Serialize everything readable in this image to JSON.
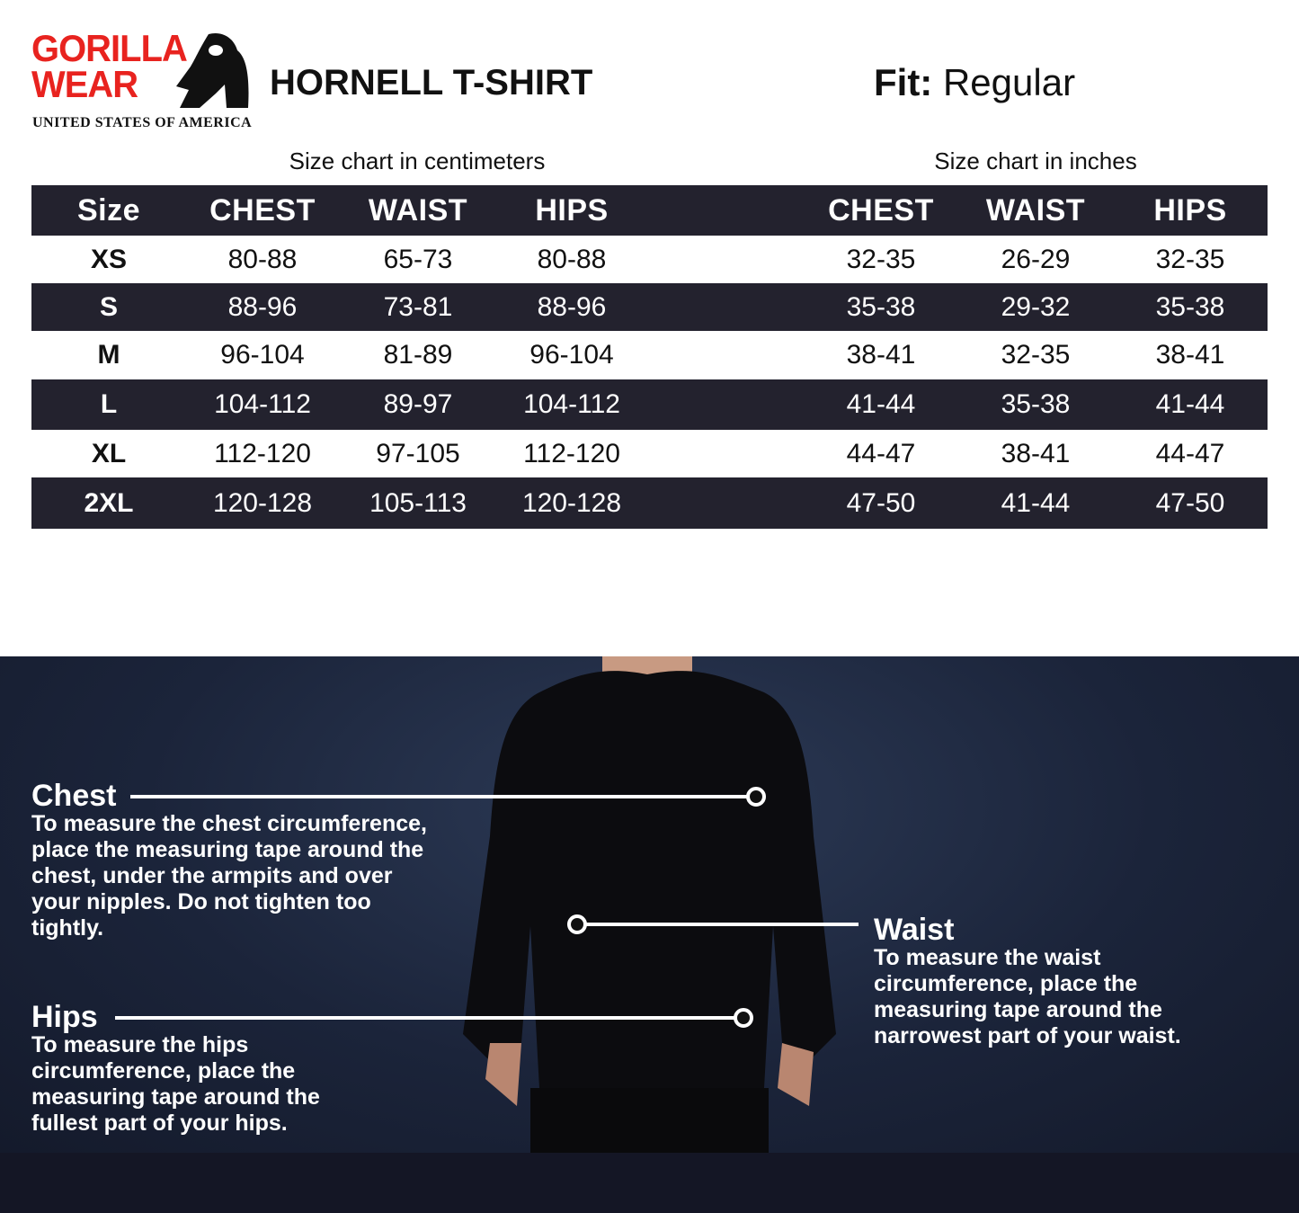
{
  "brand": {
    "logo_line1": "GORILLA",
    "logo_line2": "WEAR",
    "tagline": "UNITED STATES OF AMERICA",
    "colors": {
      "red": "#e8231f"
    }
  },
  "product": {
    "title": "HORNELL T-SHIRT",
    "fit_label": "Fit:",
    "fit_value": "Regular"
  },
  "table": {
    "cm_caption": "Size chart in centimeters",
    "in_caption": "Size chart in inches",
    "headers": [
      "Size",
      "CHEST",
      "WAIST",
      "HIPS",
      "CHEST",
      "WAIST",
      "HIPS"
    ],
    "rows": [
      [
        "XS",
        "80-88",
        "65-73",
        "80-88",
        "32-35",
        "26-29",
        "32-35"
      ],
      [
        "S",
        "88-96",
        "73-81",
        "88-96",
        "35-38",
        "29-32",
        "35-38"
      ],
      [
        "M",
        "96-104",
        "81-89",
        "96-104",
        "38-41",
        "32-35",
        "38-41"
      ],
      [
        "L",
        "104-112",
        "89-97",
        "104-112",
        "41-44",
        "35-38",
        "41-44"
      ],
      [
        "XL",
        "112-120",
        "97-105",
        "112-120",
        "44-47",
        "38-41",
        "44-47"
      ],
      [
        "2XL",
        "120-128",
        "105-113",
        "120-128",
        "47-50",
        "41-44",
        "47-50"
      ]
    ],
    "colors": {
      "dark_row": "#23222e"
    }
  },
  "guide": {
    "chest": {
      "title": "Chest",
      "text": "To measure the chest circumference, place the measuring tape around the chest, under the armpits and over your nipples. Do not tighten too tightly."
    },
    "waist": {
      "title": "Waist",
      "text": "To measure the waist circumference, place the measuring tape around the narrowest part of your waist."
    },
    "hips": {
      "title": "Hips",
      "text": "To measure the hips circumference, place the measuring tape around the fullest part of your hips."
    }
  }
}
